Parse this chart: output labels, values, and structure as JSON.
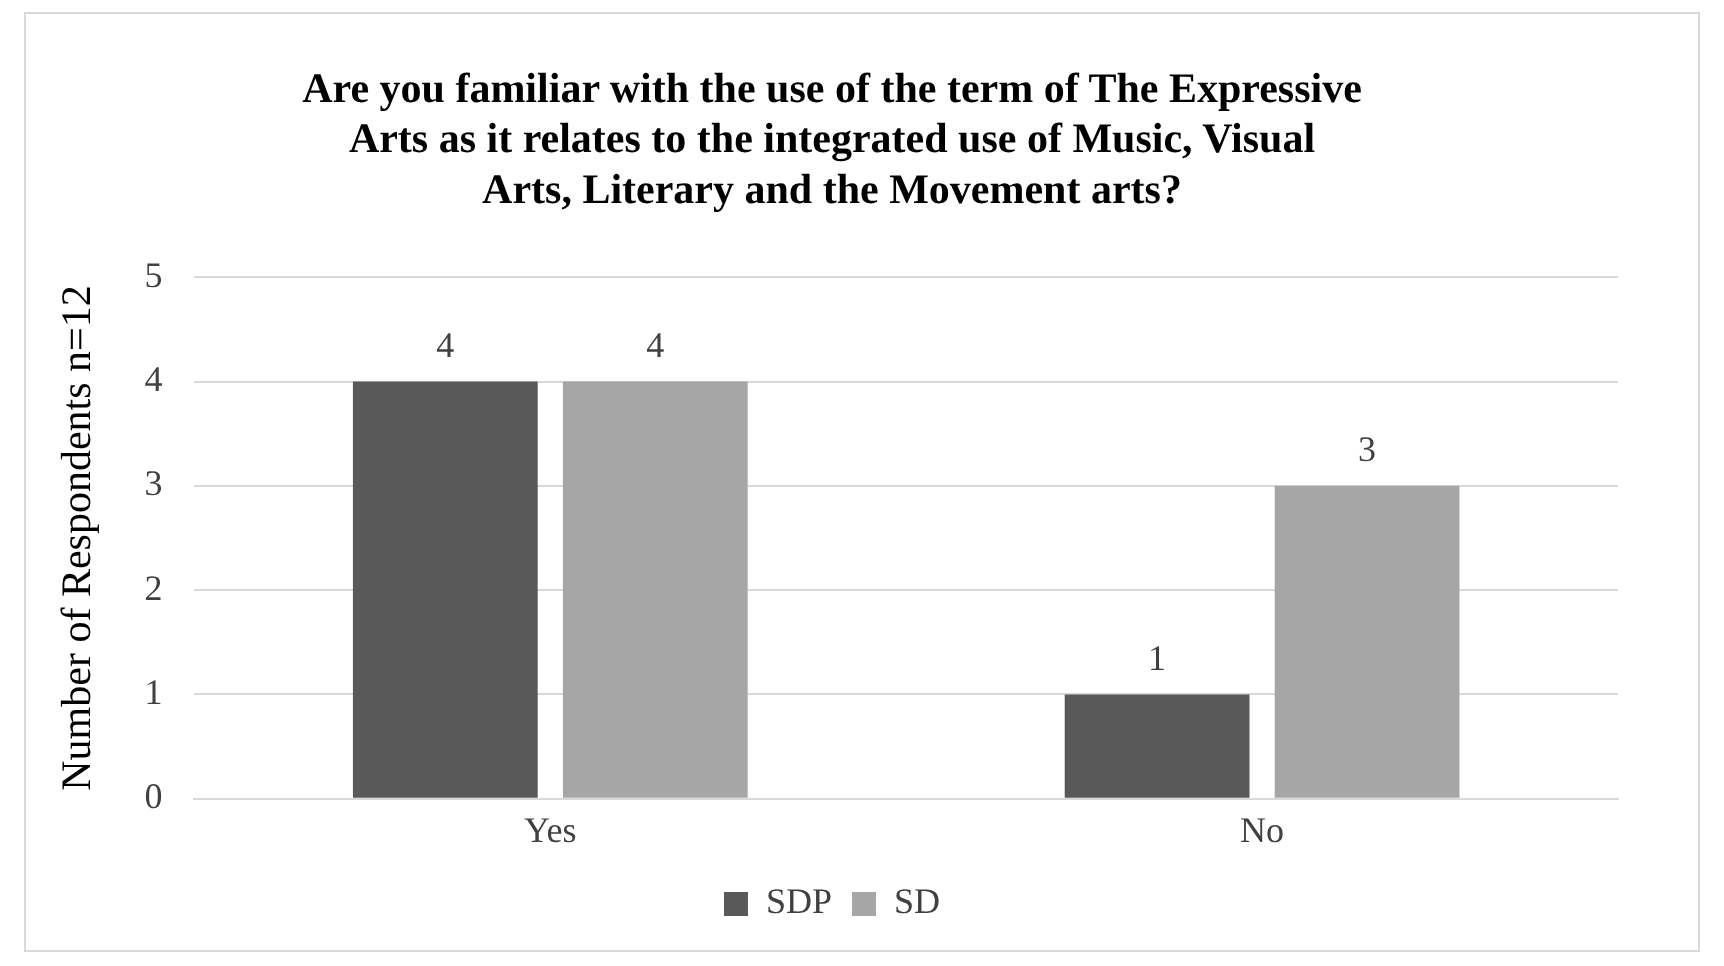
{
  "chart_data": {
    "type": "bar",
    "title": "Are you familiar with the use of the term of The Expressive Arts as it relates to the integrated use of Music, Visual Arts, Literary and the Movement arts?",
    "ylabel": "Number of Respondents n=12",
    "categories": [
      "Yes",
      "No"
    ],
    "series": [
      {
        "name": "SDP",
        "color": "#595959",
        "values": [
          4,
          1
        ]
      },
      {
        "name": "SD",
        "color": "#a6a6a6",
        "values": [
          4,
          3
        ]
      }
    ],
    "ylim": [
      0,
      5
    ],
    "yticks": [
      0,
      1,
      2,
      3,
      4,
      5
    ],
    "grid": "y",
    "legend": "bottom",
    "data_labels": true
  }
}
